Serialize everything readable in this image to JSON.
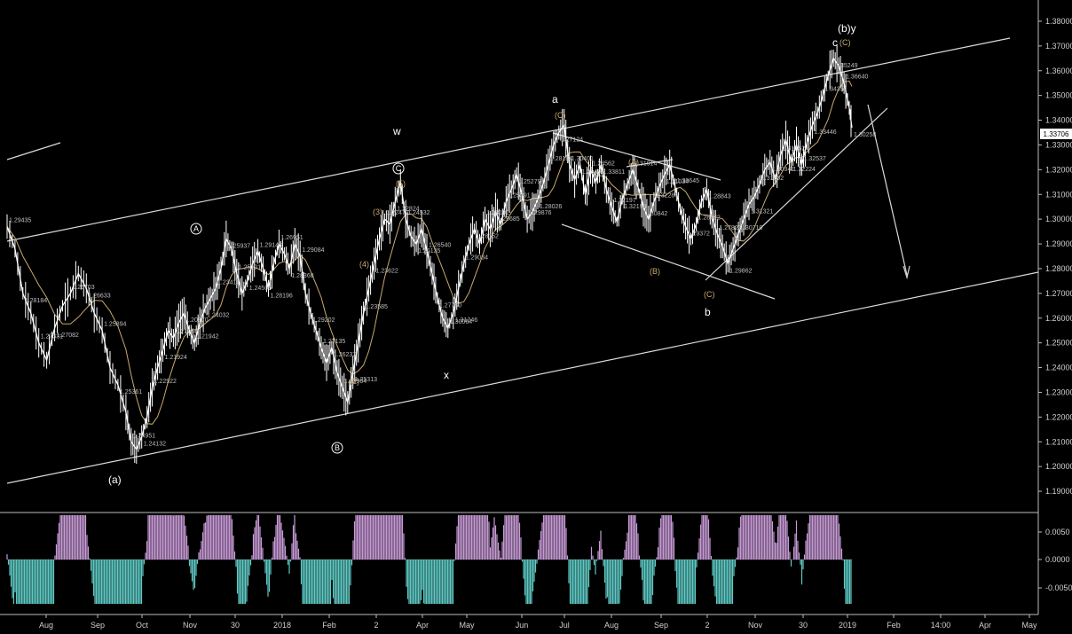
{
  "chart_data": {
    "type": "line",
    "title": "",
    "price_axis": {
      "ticks": [
        "1.38000",
        "1.37000",
        "1.36000",
        "1.35000",
        "1.34000",
        "1.33000",
        "1.32000",
        "1.31000",
        "1.30000",
        "1.29000",
        "1.28000",
        "1.27000",
        "1.26000",
        "1.25000",
        "1.24000",
        "1.23000",
        "1.22000",
        "1.21000",
        "1.20000",
        "1.19000"
      ],
      "ylim": [
        1.185,
        1.385
      ],
      "current_price": "1.33706"
    },
    "time_axis": {
      "ticks": [
        "Aug",
        "Sep",
        "Oct",
        "Nov",
        "30",
        "2018",
        "Feb",
        "2",
        "Apr",
        "May",
        "Jun",
        "Jul",
        "Aug",
        "Sep",
        "2",
        "Nov",
        "30",
        "2019",
        "Feb",
        "14:00",
        "Apr",
        "May"
      ]
    },
    "oscillator_axis": {
      "ticks": [
        "0.0050",
        "0.0000",
        "-0.0050"
      ]
    },
    "colors": {
      "background": "#000000",
      "price": "#ffffff",
      "ma": "#c8a96e",
      "channel": "#d9d9d9",
      "osc_pos": "#c79ad6",
      "osc_neg": "#5ec9c4",
      "wave_gold": "#c8a96e"
    },
    "series": [
      {
        "values": [
          [
            0,
            1.297
          ],
          [
            6,
            1.288
          ],
          [
            12,
            1.27
          ],
          [
            18,
            1.262
          ],
          [
            24,
            1.25
          ],
          [
            30,
            1.243
          ],
          [
            36,
            1.256
          ],
          [
            42,
            1.265
          ],
          [
            48,
            1.27
          ],
          [
            54,
            1.278
          ],
          [
            60,
            1.272
          ],
          [
            66,
            1.262
          ],
          [
            72,
            1.255
          ],
          [
            78,
            1.24
          ],
          [
            84,
            1.233
          ],
          [
            90,
            1.222
          ],
          [
            94,
            1.21
          ],
          [
            98,
            1.207
          ],
          [
            102,
            1.212
          ],
          [
            106,
            1.22
          ],
          [
            110,
            1.232
          ],
          [
            114,
            1.24
          ],
          [
            118,
            1.247
          ],
          [
            122,
            1.255
          ],
          [
            126,
            1.252
          ],
          [
            130,
            1.258
          ],
          [
            134,
            1.262
          ],
          [
            138,
            1.255
          ],
          [
            142,
            1.25
          ],
          [
            146,
            1.258
          ],
          [
            150,
            1.264
          ],
          [
            154,
            1.268
          ],
          [
            158,
            1.272
          ],
          [
            162,
            1.28
          ],
          [
            166,
            1.292
          ],
          [
            170,
            1.288
          ],
          [
            174,
            1.278
          ],
          [
            178,
            1.27
          ],
          [
            182,
            1.275
          ],
          [
            186,
            1.282
          ],
          [
            190,
            1.287
          ],
          [
            194,
            1.28
          ],
          [
            198,
            1.272
          ],
          [
            202,
            1.282
          ],
          [
            206,
            1.29
          ],
          [
            210,
            1.286
          ],
          [
            214,
            1.28
          ],
          [
            218,
            1.29
          ],
          [
            222,
            1.285
          ],
          [
            226,
            1.27
          ],
          [
            230,
            1.262
          ],
          [
            234,
            1.255
          ],
          [
            238,
            1.248
          ],
          [
            242,
            1.242
          ],
          [
            246,
            1.248
          ],
          [
            250,
            1.238
          ],
          [
            254,
            1.232
          ],
          [
            258,
            1.226
          ],
          [
            262,
            1.238
          ],
          [
            266,
            1.25
          ],
          [
            270,
            1.262
          ],
          [
            274,
            1.272
          ],
          [
            278,
            1.282
          ],
          [
            282,
            1.292
          ],
          [
            286,
            1.3
          ],
          [
            290,
            1.298
          ],
          [
            294,
            1.307
          ],
          [
            298,
            1.315
          ],
          [
            302,
            1.3
          ],
          [
            306,
            1.293
          ],
          [
            310,
            1.29
          ],
          [
            314,
            1.296
          ],
          [
            318,
            1.287
          ],
          [
            322,
            1.278
          ],
          [
            326,
            1.268
          ],
          [
            330,
            1.26
          ],
          [
            334,
            1.256
          ],
          [
            338,
            1.262
          ],
          [
            342,
            1.272
          ],
          [
            346,
            1.282
          ],
          [
            350,
            1.29
          ],
          [
            354,
            1.296
          ],
          [
            358,
            1.29
          ],
          [
            362,
            1.3
          ],
          [
            366,
            1.296
          ],
          [
            370,
            1.303
          ],
          [
            374,
            1.298
          ],
          [
            378,
            1.307
          ],
          [
            382,
            1.312
          ],
          [
            386,
            1.318
          ],
          [
            390,
            1.31
          ],
          [
            394,
            1.3
          ],
          [
            398,
            1.303
          ],
          [
            402,
            1.308
          ],
          [
            406,
            1.314
          ],
          [
            410,
            1.322
          ],
          [
            414,
            1.33
          ],
          [
            418,
            1.335
          ],
          [
            422,
            1.338
          ],
          [
            426,
            1.322
          ],
          [
            430,
            1.316
          ],
          [
            434,
            1.322
          ],
          [
            438,
            1.31
          ],
          [
            442,
            1.32
          ],
          [
            446,
            1.315
          ],
          [
            450,
            1.322
          ],
          [
            454,
            1.312
          ],
          [
            458,
            1.305
          ],
          [
            462,
            1.299
          ],
          [
            466,
            1.308
          ],
          [
            470,
            1.314
          ],
          [
            474,
            1.32
          ],
          [
            478,
            1.313
          ],
          [
            482,
            1.305
          ],
          [
            486,
            1.3
          ],
          [
            490,
            1.307
          ],
          [
            494,
            1.313
          ],
          [
            498,
            1.318
          ],
          [
            502,
            1.322
          ],
          [
            506,
            1.313
          ],
          [
            510,
            1.304
          ],
          [
            514,
            1.297
          ],
          [
            518,
            1.292
          ],
          [
            522,
            1.298
          ],
          [
            526,
            1.307
          ],
          [
            530,
            1.312
          ],
          [
            534,
            1.301
          ],
          [
            538,
            1.294
          ],
          [
            542,
            1.289
          ],
          [
            546,
            1.282
          ],
          [
            550,
            1.288
          ],
          [
            554,
            1.294
          ],
          [
            558,
            1.3
          ],
          [
            562,
            1.306
          ],
          [
            566,
            1.309
          ],
          [
            570,
            1.314
          ],
          [
            574,
            1.32
          ],
          [
            578,
            1.323
          ],
          [
            582,
            1.316
          ],
          [
            586,
            1.326
          ],
          [
            590,
            1.332
          ],
          [
            594,
            1.323
          ],
          [
            598,
            1.33
          ],
          [
            602,
            1.322
          ],
          [
            606,
            1.331
          ],
          [
            610,
            1.338
          ],
          [
            614,
            1.343
          ],
          [
            618,
            1.35
          ],
          [
            622,
            1.358
          ],
          [
            626,
            1.365
          ],
          [
            630,
            1.362
          ],
          [
            634,
            1.355
          ],
          [
            638,
            1.345
          ],
          [
            640,
            1.337
          ]
        ]
      }
    ],
    "wave_labels": {
      "a_paren": "(a)",
      "b_circle": "B",
      "a_circle": "A",
      "c_circle": "C",
      "w": "w",
      "x": "x",
      "a": "a",
      "b": "b",
      "c": "c",
      "by": "(b)y",
      "C_paren_top": "(C)",
      "C_paren_a": "(C)",
      "A_paren": "(A)",
      "B_paren": "(B)",
      "C_paren_b": "(C)",
      "n2": "(2)",
      "n3": "(3)",
      "n4": "(4)",
      "n5": "(5)"
    },
    "price_labels": [
      "1.29435",
      "1.28184",
      "1.27331",
      "1.27082",
      "1.26703",
      "1.26633",
      "1.25894",
      "1.25361",
      "1.24951",
      "1.24132",
      "1.22922",
      "1.21924",
      "1.21184",
      "1.20870",
      "1.21942",
      "1.24032",
      "1.23411",
      "1.25937",
      "1.25101",
      "1.24506",
      "1.29143",
      "1.28196",
      "1.26951",
      "1.28368",
      "1.29084",
      "1.29202",
      "1.27135",
      "1.26237",
      "1.25904",
      "1.25313",
      "1.23585",
      "1.23622",
      "1.22472",
      "1.22824",
      "1.24532",
      "1.26135",
      "1.26540",
      "1.27780",
      "1.30064",
      "1.31246",
      "1.29034",
      "1.28152",
      "1.28191",
      "1.29685",
      "1.25391",
      "1.25279",
      "1.29876",
      "1.28026",
      "1.28184",
      "1.27124",
      "1.30401",
      "1.29405",
      "1.28562",
      "1.33811",
      "1.32197",
      "1.32198",
      "1.31914",
      "1.30842",
      "1.32284",
      "1.31034",
      "1.30645",
      "1.29372",
      "1.28472",
      "1.28843",
      "1.27823",
      "1.29862",
      "1.30710",
      "1.31321",
      "1.31902",
      "1.30341",
      "1.31762",
      "1.32224",
      "1.32537",
      "1.33446",
      "1.34351",
      "1.35249",
      "1.36640",
      "1.30258"
    ]
  }
}
